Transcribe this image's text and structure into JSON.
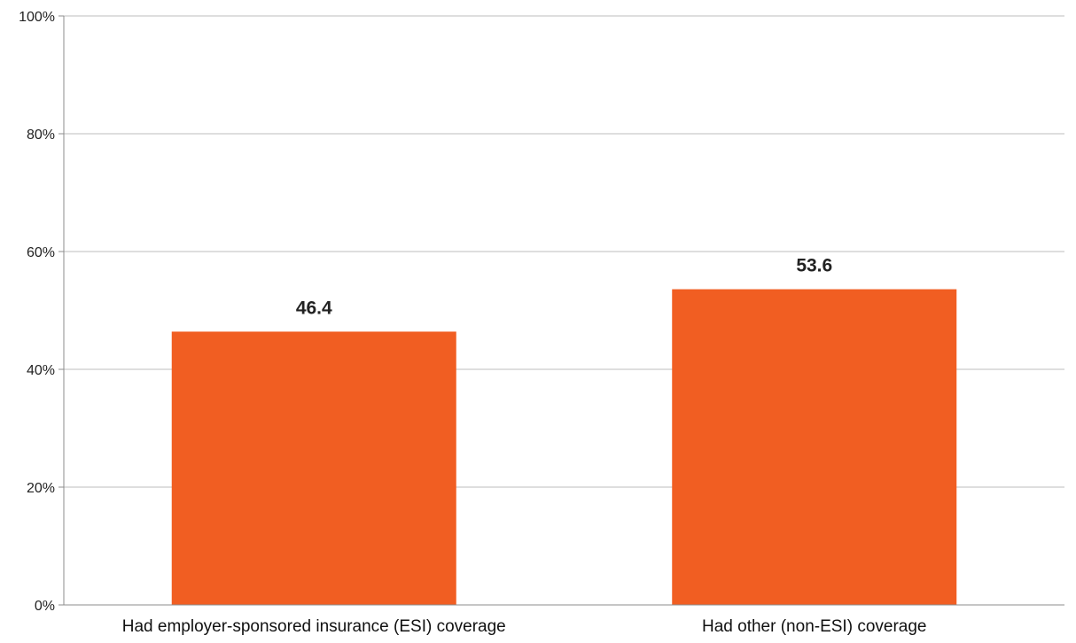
{
  "chart_data": {
    "type": "bar",
    "title": "",
    "xlabel": "",
    "ylabel": "",
    "categories": [
      "Had employer-sponsored insurance (ESI) coverage",
      "Had other (non-ESI) coverage"
    ],
    "values": [
      46.4,
      53.6
    ],
    "data_labels": [
      "46.4",
      "53.6"
    ],
    "ylim": [
      0,
      100
    ],
    "y_ticks": [
      0,
      20,
      40,
      60,
      80,
      100
    ],
    "y_tick_labels": [
      "0%",
      "20%",
      "40%",
      "60%",
      "80%",
      "100%"
    ],
    "grid": true,
    "legend": "none",
    "colors": {
      "bar": "#f15e22",
      "grid": "#bdbdbd",
      "axis": "#8c8c8c"
    }
  }
}
